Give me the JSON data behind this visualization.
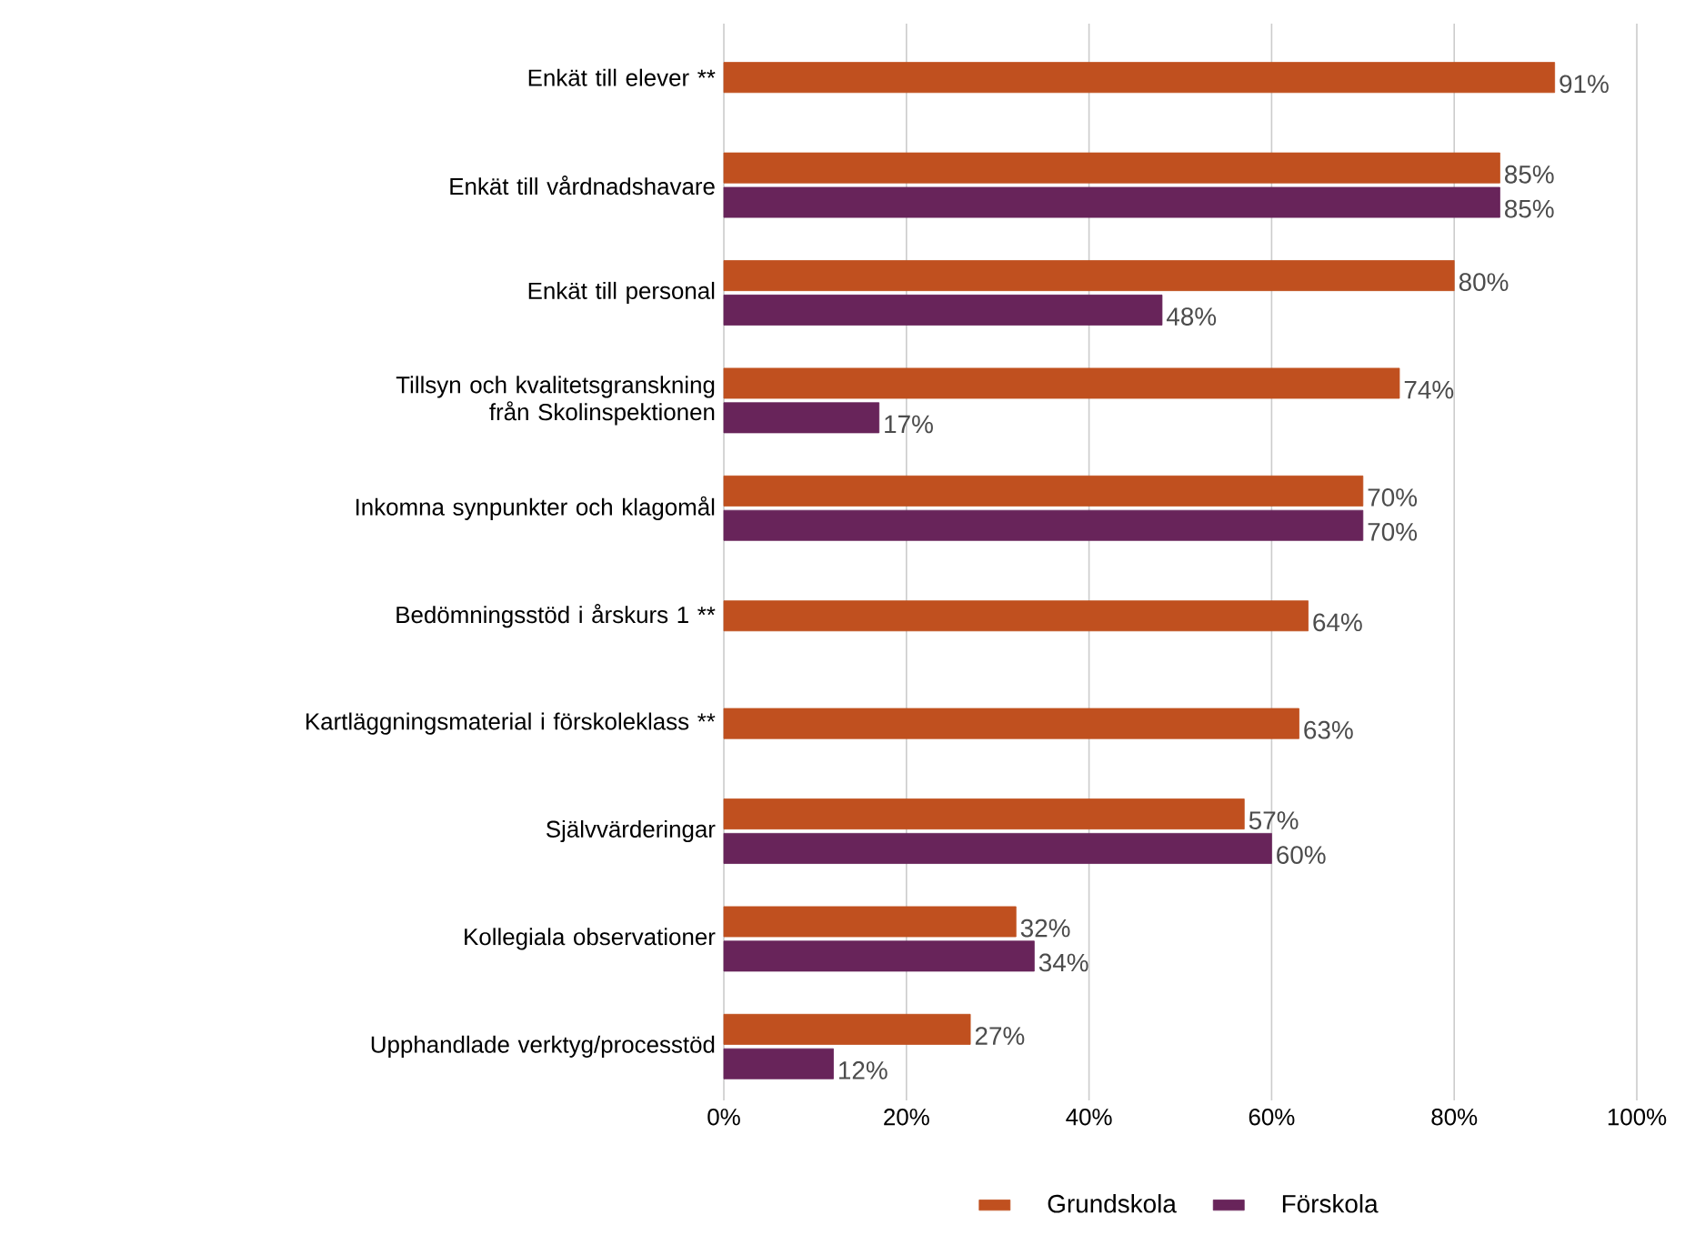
{
  "chart_data": {
    "type": "bar",
    "orientation": "horizontal",
    "categories": [
      "Enkät till elever **",
      "Enkät till vårdnadshavare",
      "Enkät till personal",
      "Tillsyn och kvalitetsgranskning från Skolinspektionen",
      "Inkomna synpunkter och klagomål",
      "Bedömningsstöd i årskurs 1 **",
      "Kartläggningsmaterial i förskoleklass **",
      "Självvärderingar",
      "Kollegiala observationer",
      "Upphandlade verktyg/processtöd"
    ],
    "series": [
      {
        "name": "Grundskola",
        "color": "#c0501f",
        "values": [
          91,
          85,
          80,
          74,
          70,
          64,
          63,
          57,
          32,
          27
        ],
        "value_labels": [
          "91%",
          "85%",
          "80%",
          "74%",
          "70%",
          "64%",
          "63%",
          "57%",
          "32%",
          "27%"
        ]
      },
      {
        "name": "Förskola",
        "color": "#68245a",
        "values": [
          null,
          85,
          48,
          17,
          70,
          null,
          null,
          60,
          34,
          12
        ],
        "value_labels": [
          null,
          "85%",
          "48%",
          "17%",
          "70%",
          null,
          null,
          "60%",
          "34%",
          "12%"
        ]
      }
    ],
    "xlim": [
      0,
      100
    ],
    "xticks": [
      {
        "value": 0,
        "label": "0%"
      },
      {
        "value": 20,
        "label": "20%"
      },
      {
        "value": 40,
        "label": "40%"
      },
      {
        "value": 60,
        "label": "60%"
      },
      {
        "value": 80,
        "label": "80%"
      },
      {
        "value": 100,
        "label": "100%"
      }
    ],
    "grid": "x",
    "legend": "bottom"
  }
}
